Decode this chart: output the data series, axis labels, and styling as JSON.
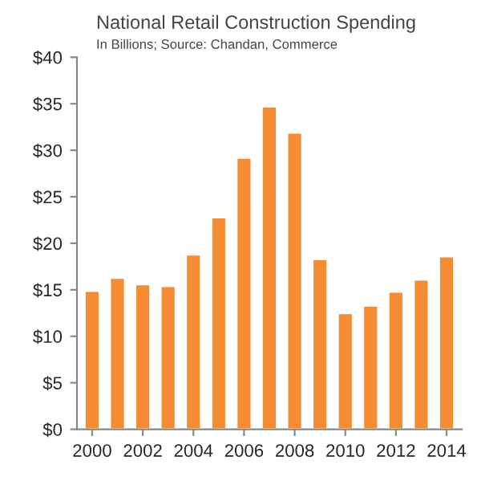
{
  "chart_data": {
    "type": "bar",
    "title": "National Retail Construction Spending",
    "subtitle": "In Billions; Source: Chandan, Commerce",
    "x": [
      2000,
      2001,
      2002,
      2003,
      2004,
      2005,
      2006,
      2007,
      2008,
      2009,
      2010,
      2011,
      2012,
      2013,
      2014
    ],
    "series": [
      {
        "color": "#f58b33",
        "values": [
          14.9,
          16.3,
          15.6,
          15.4,
          18.8,
          22.8,
          29.2,
          34.7,
          31.9,
          18.3,
          12.5,
          13.3,
          14.8,
          16.1,
          18.6
        ]
      }
    ],
    "xlim": [
      1999.4,
      2014.6
    ],
    "xticks": [
      2000,
      2002,
      2004,
      2006,
      2008,
      2010,
      2012,
      2014
    ],
    "ylim": [
      0,
      40
    ],
    "yticks": [
      {
        "value": 0,
        "label": "$0"
      },
      {
        "value": 5,
        "label": "$5"
      },
      {
        "value": 10,
        "label": "$10"
      },
      {
        "value": 15,
        "label": "$15"
      },
      {
        "value": 20,
        "label": "$20"
      },
      {
        "value": 25,
        "label": "$25"
      },
      {
        "value": 30,
        "label": "$30"
      },
      {
        "value": 35,
        "label": "$35"
      },
      {
        "value": 40,
        "label": "$40"
      }
    ],
    "grid": false,
    "legend": false
  }
}
